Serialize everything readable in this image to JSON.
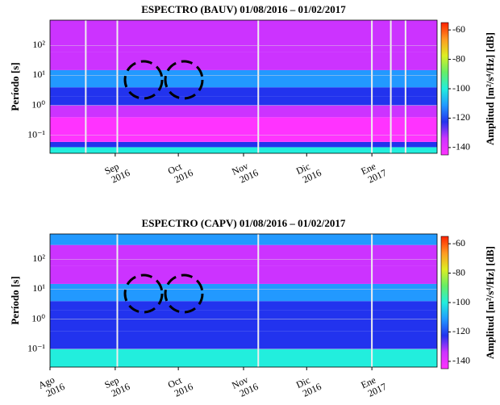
{
  "chart_data": [
    {
      "type": "heatmap",
      "title": "ESPECTRO (BAUV) 01/08/2016 – 01/02/2017",
      "ylabel": "Período [s]",
      "log_y": true,
      "ylim": [
        0.025,
        700
      ],
      "yticks": [
        {
          "value": 0.1,
          "label": "10⁻¹"
        },
        {
          "value": 1,
          "label": "10⁰"
        },
        {
          "value": 10,
          "label": "10¹"
        },
        {
          "value": 100,
          "label": "10²"
        }
      ],
      "xlim": [
        "2016-08-01",
        "2017-02-01"
      ],
      "xticks": [
        {
          "value": "2016-09-01",
          "label": "Sep 2016"
        },
        {
          "value": "2016-10-01",
          "label": "Oct 2016"
        },
        {
          "value": "2016-11-01",
          "label": "Nov 2016"
        },
        {
          "value": "2016-12-01",
          "label": "Dic 2016"
        },
        {
          "value": "2017-01-01",
          "label": "Ene 2017"
        }
      ],
      "y_edges": [
        0.025,
        0.04,
        0.06,
        0.4,
        1,
        2,
        4,
        15,
        60,
        700
      ],
      "z": [
        -105,
        -118,
        -140,
        -132,
        -122,
        -126,
        -114,
        -132,
        -138
      ],
      "gaps": [
        "2016-08-18",
        "2016-09-02",
        "2016-11-08",
        "2017-01-01",
        "2017-01-10",
        "2017-01-17"
      ],
      "zlim": [
        -145,
        -55
      ],
      "zticks": [
        -140,
        -120,
        -100,
        -80,
        -60
      ],
      "colormap": [
        "#ff33ff",
        "#cc33ff",
        "#2233ee",
        "#2299ff",
        "#22eedd",
        "#66ee66",
        "#ddee22",
        "#ff9922",
        "#ff2200"
      ],
      "zlabel": "Amplitud [m²/s⁴/Hz] [dB]"
    },
    {
      "type": "heatmap",
      "title": "ESPECTRO (CAPV) 01/08/2016 – 01/02/2017",
      "ylabel": "Período [s]",
      "log_y": true,
      "ylim": [
        0.025,
        700
      ],
      "yticks": [
        {
          "value": 0.1,
          "label": "10⁻¹"
        },
        {
          "value": 1,
          "label": "10⁰"
        },
        {
          "value": 10,
          "label": "10¹"
        },
        {
          "value": 100,
          "label": "10²"
        }
      ],
      "xlim": [
        "2016-08-01",
        "2017-02-01"
      ],
      "xticks": [
        {
          "value": "2016-08-01",
          "label": "Ago 2016"
        },
        {
          "value": "2016-09-01",
          "label": "Sep 2016"
        },
        {
          "value": "2016-10-01",
          "label": "Oct 2016"
        },
        {
          "value": "2016-11-01",
          "label": "Nov 2016"
        },
        {
          "value": "2016-12-01",
          "label": "Dic 2016"
        },
        {
          "value": "2017-01-01",
          "label": "Ene 2017"
        }
      ],
      "y_edges": [
        0.025,
        0.1,
        0.4,
        1,
        2,
        4,
        15,
        60,
        300,
        700
      ],
      "z": [
        -102,
        -118,
        -126,
        -122,
        -126,
        -114,
        -130,
        -134,
        -108
      ],
      "gaps": [
        "2016-09-02",
        "2016-11-08",
        "2017-01-01"
      ],
      "zlim": [
        -145,
        -55
      ],
      "zticks": [
        -140,
        -120,
        -100,
        -80,
        -60
      ],
      "colormap": [
        "#ff33ff",
        "#cc33ff",
        "#2233ee",
        "#2299ff",
        "#22eedd",
        "#66ee66",
        "#ddee22",
        "#ff9922",
        "#ff2200"
      ],
      "zlabel": "Amplitud [m²/s⁴/Hz] [dB]"
    }
  ]
}
